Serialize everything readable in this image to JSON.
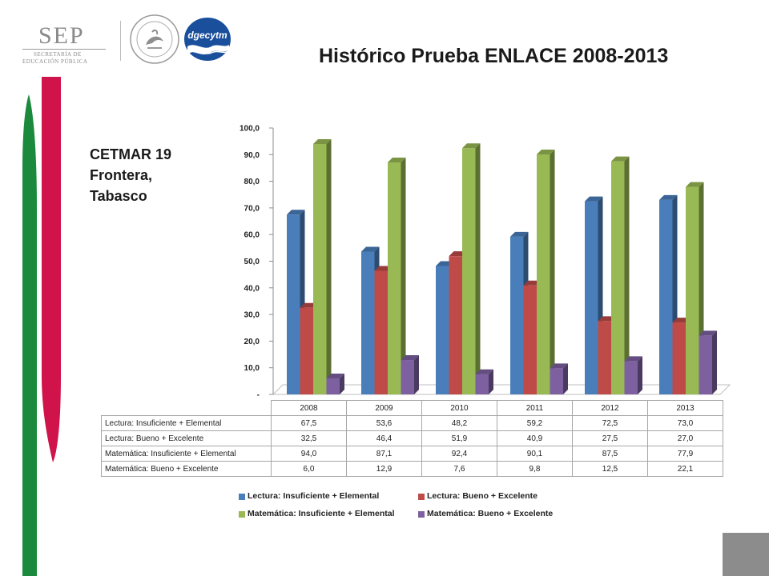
{
  "header": {
    "sep_wordmark": "SEP",
    "sep_line1": "SECRETARÍA DE",
    "sep_line2": "EDUCACIÓN PÚBLICA",
    "dgecytm_logo": "dgecytm"
  },
  "slide": {
    "title": "Histórico Prueba ENLACE 2008-2013",
    "school_line1": "CETMAR 19",
    "school_line2": "Frontera,",
    "school_line3": "Tabasco"
  },
  "colors": {
    "green_band": "#1b8a3c",
    "red_band": "#d0134a",
    "footer_square": "#8c8c8c"
  },
  "chart_data": {
    "type": "bar",
    "categories": [
      "2008",
      "2009",
      "2010",
      "2011",
      "2012",
      "2013"
    ],
    "series": [
      {
        "name": "Lectura: Insuficiente + Elemental",
        "values": [
          67.5,
          53.6,
          48.2,
          59.2,
          72.5,
          73.0
        ],
        "labels": [
          "67,5",
          "53,6",
          "48,2",
          "59,2",
          "72,5",
          "73,0"
        ],
        "color": "#4a7ebb"
      },
      {
        "name": "Lectura: Bueno + Excelente",
        "values": [
          32.5,
          46.4,
          51.9,
          40.9,
          27.5,
          27.0
        ],
        "labels": [
          "32,5",
          "46,4",
          "51,9",
          "40,9",
          "27,5",
          "27,0"
        ],
        "color": "#be4b48"
      },
      {
        "name": "Matemática: Insuficiente + Elemental",
        "values": [
          94.0,
          87.1,
          92.4,
          90.1,
          87.5,
          77.9
        ],
        "labels": [
          "94,0",
          "87,1",
          "92,4",
          "90,1",
          "87,5",
          "77,9"
        ],
        "color": "#98b954"
      },
      {
        "name": "Matemática: Bueno + Excelente",
        "values": [
          6.0,
          12.9,
          7.6,
          9.8,
          12.5,
          22.1
        ],
        "labels": [
          "6,0",
          "12,9",
          "7,6",
          "9,8",
          "12,5",
          "22,1"
        ],
        "color": "#7d60a0"
      }
    ],
    "ylim": [
      0,
      100
    ],
    "yticks": [
      0,
      10,
      20,
      30,
      40,
      50,
      60,
      70,
      80,
      90,
      100
    ],
    "ytick_labels": [
      "-",
      "10,0",
      "20,0",
      "30,0",
      "40,0",
      "50,0",
      "60,0",
      "70,0",
      "80,0",
      "90,0",
      "100,0"
    ],
    "style": "3d-clustered-column",
    "data_table": true,
    "legend": "bottom"
  }
}
